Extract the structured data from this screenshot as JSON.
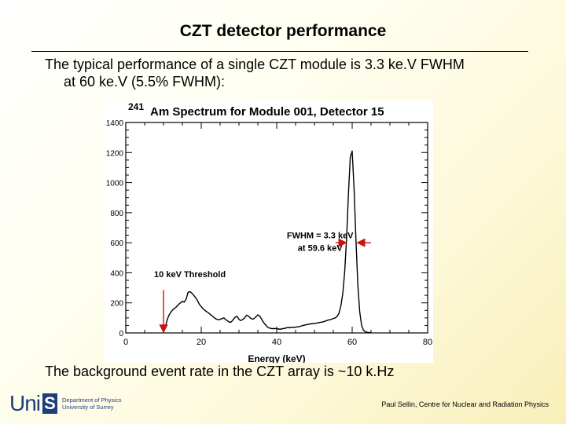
{
  "slide": {
    "title": "CZT detector performance",
    "intro_line1": "The typical performance of a single CZT module is 3.3 ke.V FWHM",
    "intro_line2": "at 60 ke.V (5.5% FWHM):",
    "footer_text": "The background event rate in the CZT array is ~10 k.Hz",
    "credit": "Paul Sellin, Centre for Nuclear and Radiation Physics",
    "logo_word": "Uni",
    "logo_s": "S",
    "logo_dept_line1": "Department of Physics",
    "logo_dept_line2": "University of Surrey"
  },
  "chart_data": {
    "type": "line",
    "title_superscript": "241",
    "title": "Am Spectrum for Module 001, Detector 15",
    "xlabel": "Energy (keV)",
    "ylabel": "",
    "xlim": [
      0,
      80
    ],
    "ylim": [
      0,
      1400
    ],
    "x_ticks": [
      "0",
      "20",
      "40",
      "60",
      "80"
    ],
    "y_ticks": [
      "0",
      "200",
      "400",
      "600",
      "800",
      "1000",
      "1200",
      "1400"
    ],
    "series": [
      {
        "name": "241Am spectrum",
        "x": [
          10,
          10.5,
          11,
          11.5,
          12,
          12.5,
          13,
          13.5,
          14,
          14.5,
          15,
          15.5,
          16,
          16.5,
          17,
          17.5,
          18,
          18.5,
          19,
          19.5,
          20,
          20.5,
          21,
          21.5,
          22,
          22.5,
          23,
          23.5,
          24,
          24.5,
          25,
          25.5,
          26,
          26.5,
          27,
          27.5,
          28,
          28.5,
          29,
          29.5,
          30,
          30.5,
          31,
          31.5,
          32,
          32.5,
          33,
          33.5,
          34,
          34.5,
          35,
          35.5,
          36,
          36.5,
          37,
          37.5,
          38,
          38.5,
          39,
          39.5,
          40,
          40.5,
          41,
          41.5,
          42,
          42.5,
          43,
          43.5,
          44,
          44.5,
          45,
          45.5,
          46,
          46.5,
          47,
          47.5,
          48,
          48.5,
          49,
          49.5,
          50,
          50.5,
          51,
          51.5,
          52,
          52.5,
          53,
          53.5,
          54,
          54.5,
          55,
          55.5,
          56,
          56.5,
          57,
          57.5,
          58,
          58.5,
          59,
          59.5,
          60,
          60.5,
          61,
          61.5,
          62,
          62.5,
          63,
          63.5,
          64,
          64.5,
          65
        ],
        "values": [
          5,
          40,
          90,
          120,
          140,
          155,
          165,
          175,
          190,
          200,
          210,
          205,
          225,
          270,
          275,
          265,
          250,
          235,
          215,
          190,
          175,
          160,
          150,
          140,
          132,
          120,
          112,
          100,
          92,
          88,
          90,
          95,
          100,
          88,
          80,
          70,
          74,
          90,
          105,
          110,
          90,
          82,
          90,
          100,
          118,
          112,
          100,
          92,
          95,
          108,
          120,
          112,
          92,
          70,
          55,
          40,
          33,
          30,
          28,
          30,
          28,
          26,
          24,
          28,
          30,
          33,
          36,
          34,
          38,
          36,
          38,
          40,
          42,
          46,
          50,
          52,
          56,
          58,
          60,
          62,
          62,
          65,
          68,
          70,
          72,
          75,
          80,
          84,
          88,
          90,
          96,
          100,
          110,
          130,
          180,
          260,
          400,
          620,
          920,
          1170,
          1210,
          960,
          620,
          320,
          140,
          50,
          18,
          8,
          4,
          2,
          0
        ]
      }
    ],
    "annotations": [
      {
        "text": "FWHM = 3.3 keV",
        "x": 51.5,
        "y": 630
      },
      {
        "text": "at 59.6 keV",
        "x": 51.5,
        "y": 545
      },
      {
        "text": "10 keV Threshold",
        "x": 17,
        "y": 370
      }
    ],
    "arrows": [
      {
        "from": [
          55.6,
          600
        ],
        "to": [
          58.4,
          600
        ]
      },
      {
        "from": [
          65.0,
          600
        ],
        "to": [
          61.4,
          600
        ]
      },
      {
        "from": [
          10.0,
          285
        ],
        "to": [
          10.0,
          5
        ]
      }
    ],
    "line_color": "#000000",
    "arrow_color": "#cc1111"
  }
}
